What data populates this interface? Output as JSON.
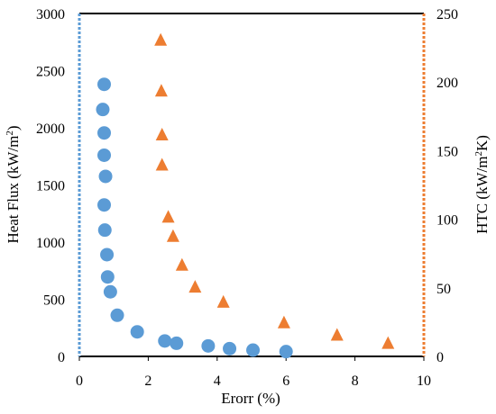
{
  "chart_data": {
    "type": "scatter",
    "title": "",
    "xlabel": "Erorr (%)",
    "ylabel_left_main": "Heat Flux (kW/m",
    "ylabel_left_sup": "2",
    "ylabel_left_end": ")",
    "ylabel_right_main": "HTC (kW/m",
    "ylabel_right_sup": "2",
    "ylabel_right_end": "K)",
    "xlim": [
      0,
      10
    ],
    "ylim_left": [
      0,
      3000
    ],
    "ylim_right": [
      0,
      250
    ],
    "x_ticks": [
      "0",
      "2",
      "4",
      "6",
      "8",
      "10"
    ],
    "y_left_ticks": [
      "0",
      "500",
      "1000",
      "1500",
      "2000",
      "2500",
      "3000"
    ],
    "y_right_ticks": [
      "0",
      "50",
      "100",
      "150",
      "200",
      "250"
    ],
    "grid": false,
    "legend": "none",
    "colors": {
      "left_axis": "#5b9bd5",
      "right_axis": "#ed7d31",
      "frame": "#000000"
    },
    "series": [
      {
        "axis": "left",
        "marker": "circle",
        "color": "#5b9bd5",
        "points": [
          {
            "x": 0.72,
            "y": 2380
          },
          {
            "x": 0.68,
            "y": 2160
          },
          {
            "x": 0.72,
            "y": 1955
          },
          {
            "x": 0.72,
            "y": 1760
          },
          {
            "x": 0.76,
            "y": 1575
          },
          {
            "x": 0.72,
            "y": 1325
          },
          {
            "x": 0.74,
            "y": 1105
          },
          {
            "x": 0.8,
            "y": 890
          },
          {
            "x": 0.82,
            "y": 695
          },
          {
            "x": 0.9,
            "y": 565
          },
          {
            "x": 1.1,
            "y": 360
          },
          {
            "x": 1.68,
            "y": 215
          },
          {
            "x": 2.48,
            "y": 135
          },
          {
            "x": 2.82,
            "y": 115
          },
          {
            "x": 3.74,
            "y": 92
          },
          {
            "x": 4.36,
            "y": 68
          },
          {
            "x": 5.04,
            "y": 55
          },
          {
            "x": 6.0,
            "y": 42
          }
        ]
      },
      {
        "axis": "right",
        "marker": "triangle",
        "color": "#ed7d31",
        "points": [
          {
            "x": 2.36,
            "y": 230
          },
          {
            "x": 2.38,
            "y": 193
          },
          {
            "x": 2.4,
            "y": 161
          },
          {
            "x": 2.4,
            "y": 139
          },
          {
            "x": 2.58,
            "y": 101
          },
          {
            "x": 2.72,
            "y": 87
          },
          {
            "x": 2.98,
            "y": 66
          },
          {
            "x": 3.36,
            "y": 50
          },
          {
            "x": 4.18,
            "y": 39
          },
          {
            "x": 5.94,
            "y": 24
          },
          {
            "x": 7.48,
            "y": 15
          },
          {
            "x": 8.96,
            "y": 9
          }
        ]
      }
    ]
  }
}
